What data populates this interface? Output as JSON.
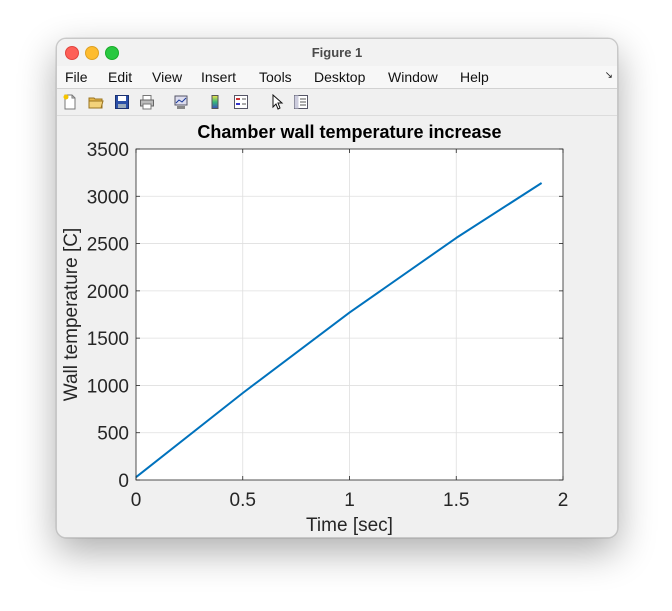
{
  "window": {
    "title": "Figure 1"
  },
  "menu": {
    "items": [
      "File",
      "Edit",
      "View",
      "Insert",
      "Tools",
      "Desktop",
      "Window",
      "Help"
    ]
  },
  "toolbar": {
    "icons": [
      "new-figure-icon",
      "open-file-icon",
      "save-icon",
      "print-icon",
      "link-plot-icon",
      "colorbar-icon",
      "legend-icon",
      "edit-plot-icon",
      "property-inspector-icon"
    ]
  },
  "chart_data": {
    "type": "line",
    "title": "Chamber wall temperature increase",
    "xlabel": "Time [sec]",
    "ylabel": "Wall temperature [C]",
    "xlim": [
      0,
      2
    ],
    "ylim": [
      0,
      3500
    ],
    "xticks": [
      "0",
      "0.5",
      "1",
      "1.5",
      "2"
    ],
    "yticks": [
      "0",
      "500",
      "1000",
      "1500",
      "2000",
      "2500",
      "3000",
      "3500"
    ],
    "grid": true,
    "series": [
      {
        "color": "#0072bd",
        "x": [
          0,
          0.5,
          1.0,
          1.5,
          1.9
        ],
        "y": [
          30,
          920,
          1770,
          2560,
          3140
        ]
      }
    ]
  }
}
